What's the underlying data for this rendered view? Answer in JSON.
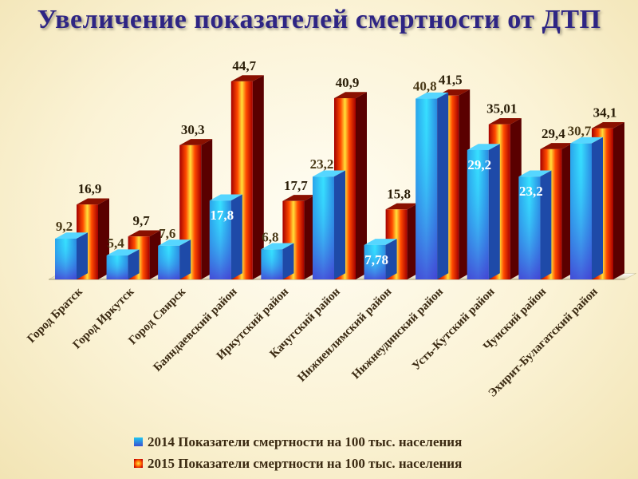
{
  "title": "Увеличение показателей смертности от ДТП",
  "chart_data": {
    "type": "bar",
    "title": "Увеличение показателей смертности от ДТП",
    "categories": [
      "Город Братск",
      "Город Иркутск",
      "Город Свирск",
      "Баяндаевский район",
      "Иркутский район",
      "Качугский район",
      "Нижнеилимский район",
      "Нижнеудинский район",
      "Усть-Кутский район",
      "Чунский район",
      "Эхирит-Булагатский район"
    ],
    "series": [
      {
        "name": "2014 Показатели смертности на 100 тыс. населения",
        "values": [
          9.2,
          5.4,
          7.6,
          17.8,
          6.8,
          23.2,
          7.78,
          40.8,
          29.2,
          23.2,
          30.7
        ],
        "labels": [
          "9,2",
          "5,4",
          "7,6",
          "17,8",
          "6,8",
          "23,2",
          "7,78",
          "40,8",
          "29,2",
          "23,2",
          "30,7"
        ]
      },
      {
        "name": "2015 Показатели смертности на 100 тыс. населения",
        "values": [
          16.9,
          9.7,
          30.3,
          44.7,
          17.7,
          40.9,
          15.8,
          41.5,
          35.01,
          29.4,
          34.1
        ],
        "labels": [
          "16,9",
          "9,7",
          "30,3",
          "44,7",
          "17,7",
          "40,9",
          "15,8",
          "41,5",
          "35,01",
          "29,4",
          "34,1"
        ]
      }
    ],
    "legend_position": "bottom",
    "grid": false
  }
}
